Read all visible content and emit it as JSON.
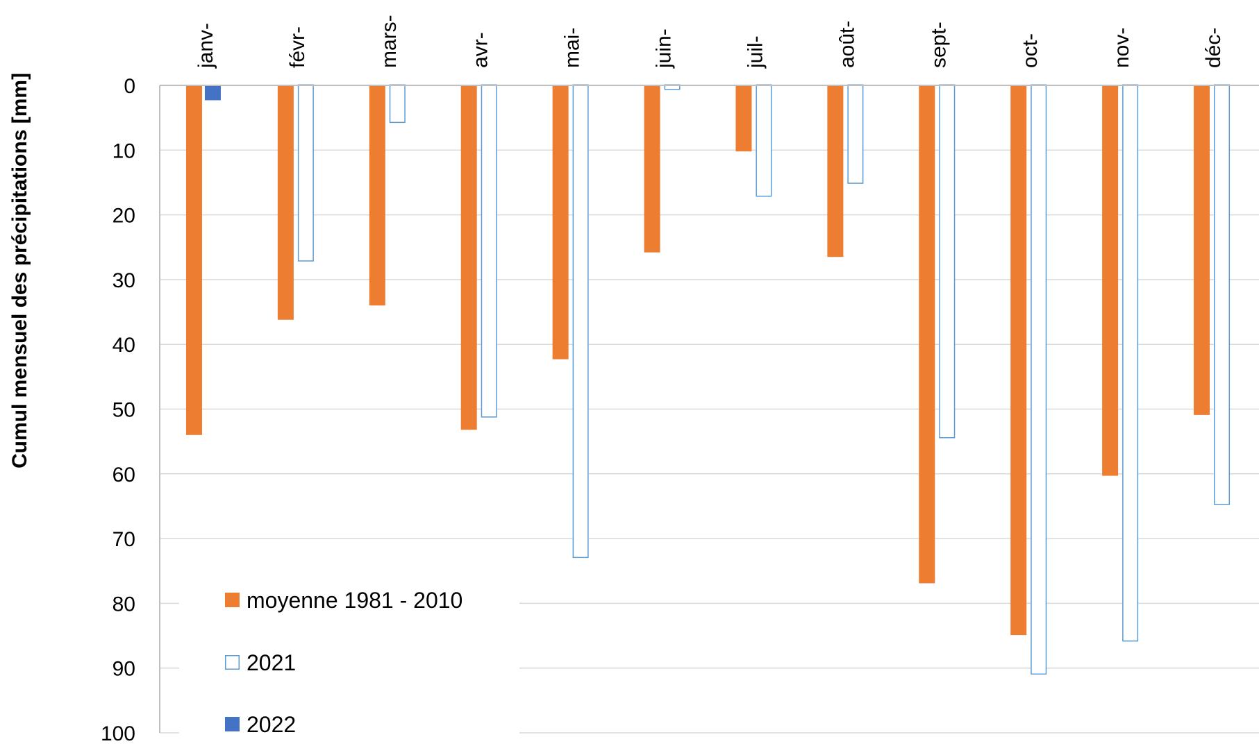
{
  "colors": {
    "moyenne": "#ED7D31",
    "y2021_stroke": "#5B9BD5",
    "y2022": "#4472C4",
    "grid": "#D9D9D9",
    "axis": "#BFBFBF"
  },
  "chart_data": {
    "type": "bar",
    "orientation": "vertical-inverted",
    "title": "",
    "xlabel": "",
    "ylabel": "Cumul mensuel des précipitations [mm]",
    "ylim": [
      0,
      100
    ],
    "y_inverted": true,
    "y_ticks": [
      0,
      10,
      20,
      30,
      40,
      50,
      60,
      70,
      80,
      90,
      100
    ],
    "x_axis_position": "top",
    "grid": true,
    "legend_position": "bottom-left",
    "categories": [
      "janv-",
      "févr-",
      "mars-",
      "avr-",
      "mai-",
      "juin-",
      "juil-",
      "août-",
      "sept-",
      "oct-",
      "nov-",
      "déc-"
    ],
    "series": [
      {
        "name": "moyenne 1981 - 2010",
        "style": "filled",
        "color": "#ED7D31",
        "values": [
          54,
          36.2,
          34,
          53.2,
          42.3,
          25.8,
          10.2,
          26.5,
          76.9,
          84.9,
          60.3,
          50.9
        ]
      },
      {
        "name": "2021",
        "style": "outline",
        "color": "#5B9BD5",
        "values": [
          null,
          27.2,
          5.8,
          51.3,
          73,
          0.7,
          17.2,
          15.2,
          54.5,
          91,
          85.9,
          64.8
        ]
      },
      {
        "name": "2022",
        "style": "filled",
        "color": "#4472C4",
        "values": [
          2.3,
          null,
          null,
          null,
          null,
          null,
          null,
          null,
          null,
          null,
          null,
          null
        ]
      }
    ]
  }
}
